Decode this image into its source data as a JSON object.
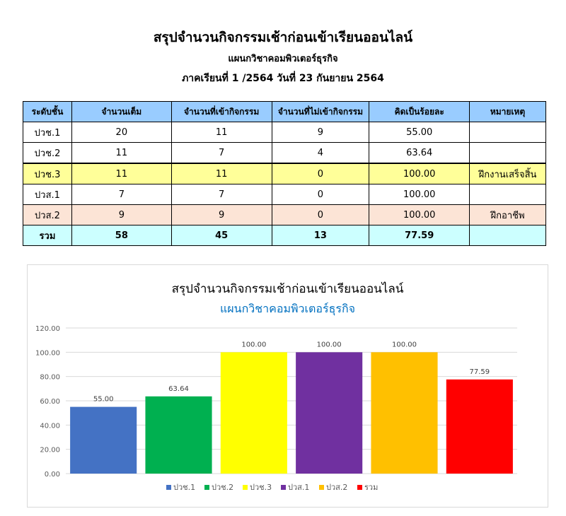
{
  "header": {
    "title": "สรุปจำนวนกิจกรรมเช้าก่อนเข้าเรียนออนไลน์",
    "department": "แผนกวิชาคอมพิวเตอร์ธุรกิจ",
    "term": "ภาคเรียนที่ 1 /2564 วันที่ 23 กันยายน 2564"
  },
  "table": {
    "columns": [
      "ระดับชั้น",
      "จำนวนเต็ม",
      "จำนวนที่เข้ากิจกรรม",
      "จำนวนที่ไม่เข้ากิจกรรม",
      "คิดเป็นร้อยละ",
      "หมายเหตุ"
    ],
    "rows": [
      [
        "ปวช.1",
        "20",
        "11",
        "9",
        "55.00",
        ""
      ],
      [
        "ปวช.2",
        "11",
        "7",
        "4",
        "63.64",
        ""
      ],
      [
        "ปวช.3",
        "11",
        "11",
        "0",
        "100.00",
        "ฝึกงานเสร็จสิ้น"
      ],
      [
        "ปวส.1",
        "7",
        "7",
        "0",
        "100.00",
        ""
      ],
      [
        "ปวส.2",
        "9",
        "9",
        "0",
        "100.00",
        "ฝึกอาชีพ"
      ],
      [
        "รวม",
        "58",
        "45",
        "13",
        "77.59",
        ""
      ]
    ],
    "row_colors": [
      "#ffffff",
      "#ffffff",
      "#ffff99",
      "#ffffff",
      "#fce4d6",
      "#ccffff"
    ]
  },
  "chart_data": {
    "type": "bar",
    "title": "สรุปจำนวนกิจกรรมเช้าก่อนเข้าเรียนออนไลน์",
    "subtitle": "แผนกวิชาคอมพิวเตอร์ธุรกิจ",
    "categories": [
      "ปวช.1",
      "ปวช.2",
      "ปวช.3",
      "ปวส.1",
      "ปวส.2",
      "รวม"
    ],
    "values": [
      55.0,
      63.64,
      100.0,
      100.0,
      100.0,
      77.59
    ],
    "data_labels": [
      "55.00",
      "63.64",
      "100.00",
      "100.00",
      "100.00",
      "77.59"
    ],
    "colors": [
      "#4472c4",
      "#00b050",
      "#ffff00",
      "#7030a0",
      "#ffc000",
      "#ff0000"
    ],
    "ylim": [
      0,
      120
    ],
    "yticks": [
      "0.00",
      "20.00",
      "40.00",
      "60.00",
      "80.00",
      "100.00",
      "120.00"
    ],
    "grid": true,
    "legend": "bottom"
  }
}
